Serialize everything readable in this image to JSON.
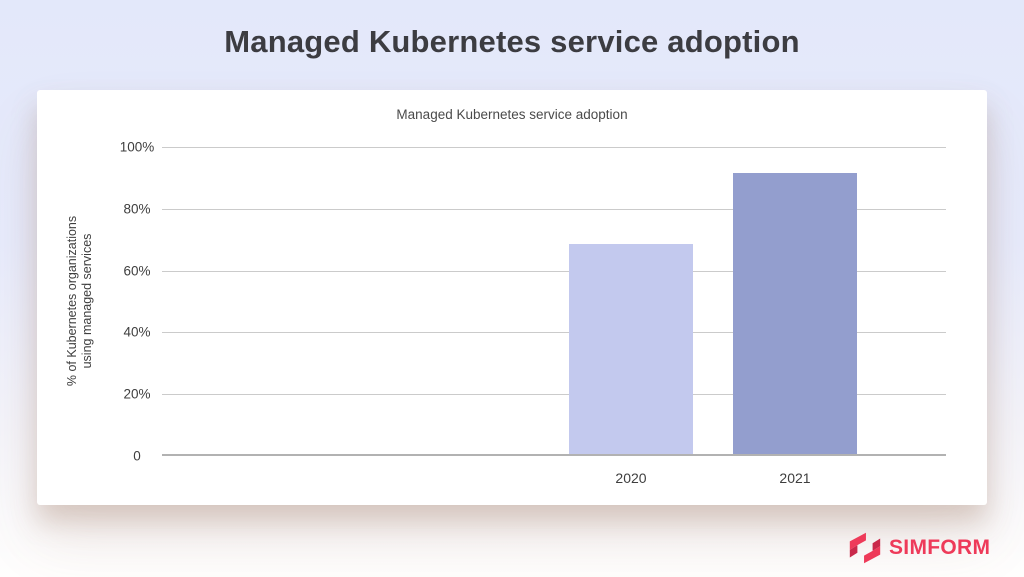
{
  "page": {
    "title": "Managed Kubernetes service adoption"
  },
  "chart_data": {
    "type": "bar",
    "title": "Managed Kubernetes service adoption",
    "categories": [
      "2020",
      "2021"
    ],
    "values": [
      68,
      91
    ],
    "xlabel": "",
    "ylabel": "% of Kubernetes organizations using managed services",
    "ylabel_lines": [
      "% of Kubernetes organizations",
      "using managed services"
    ],
    "yticks": [
      100,
      80,
      60,
      40,
      20,
      0
    ],
    "ytick_labels": [
      "100%",
      "80%",
      "60%",
      "40%",
      "20%",
      "0"
    ],
    "ylim": [
      0,
      100
    ],
    "grid": true,
    "legend": "none",
    "bar_colors": [
      "#c3c9ee",
      "#939ece"
    ]
  },
  "footer": {
    "logo_text": "SIMFORM",
    "logo_color": "#ee3a59",
    "logo_dark_color": "#c9294a"
  }
}
